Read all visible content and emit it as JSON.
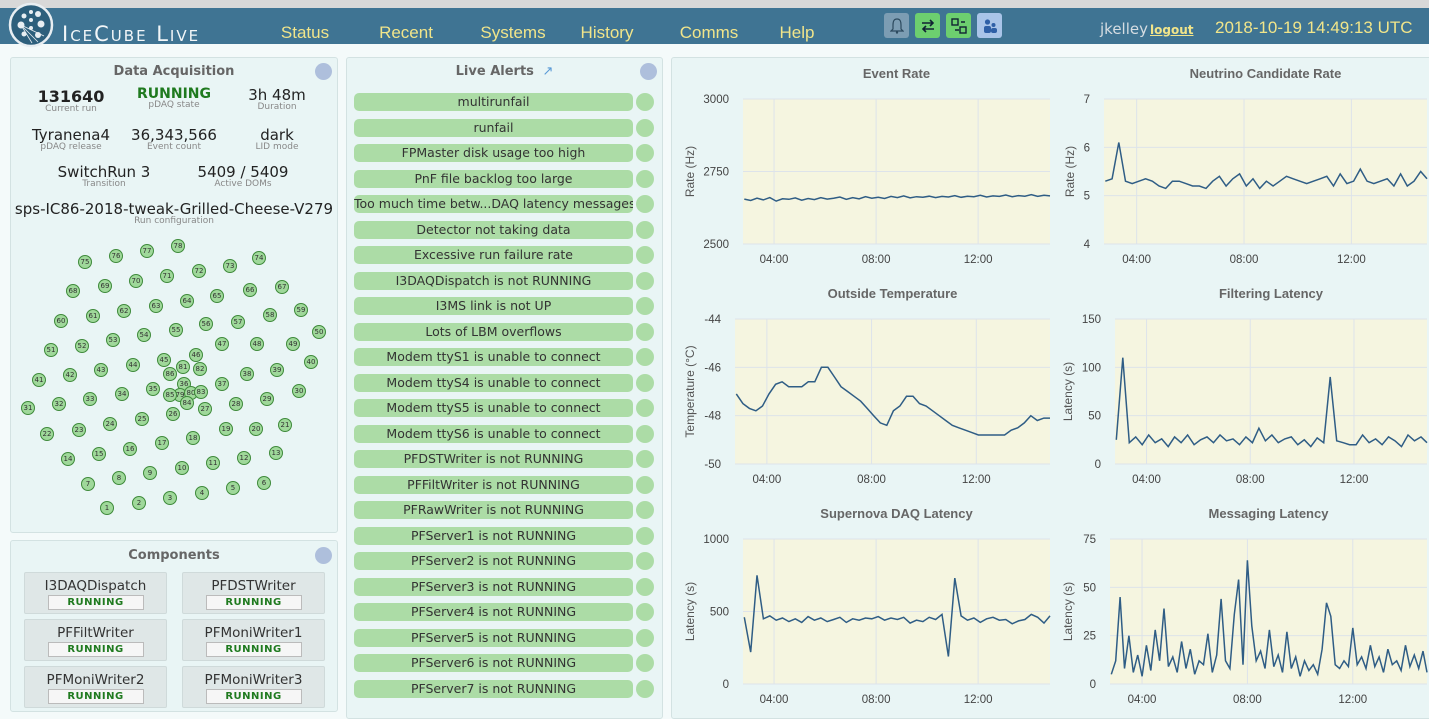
{
  "header": {
    "brand": "IceCube Live",
    "nav": [
      "Status",
      "Recent",
      "Systems",
      "History",
      "Comms",
      "Help"
    ],
    "icons": [
      {
        "name": "bell-icon",
        "glyph": "🔔",
        "color": "#7c9db3"
      },
      {
        "name": "transfer-arrows-icon",
        "glyph": "⇄",
        "color": "#6dcf6f"
      },
      {
        "name": "switch-icon",
        "glyph": "⇆",
        "color": "#6dcf6f"
      },
      {
        "name": "users-icon",
        "glyph": "👤",
        "color": "#a9c4e8"
      }
    ],
    "user": "jkelley",
    "logout": "logout",
    "datetime": "2018-10-19 14:49:13 UTC"
  },
  "data_acquisition": {
    "title": "Data Acquisition",
    "stats": [
      {
        "value": "131640",
        "label": "Current run"
      },
      {
        "value": "RUNNING",
        "label": "pDAQ state"
      },
      {
        "value": "3h 48m",
        "label": "Duration"
      },
      {
        "value": "Tyranena4",
        "label": "pDAQ release"
      },
      {
        "value": "36,343,566",
        "label": "Event count"
      },
      {
        "value": "dark",
        "label": "LID mode"
      },
      {
        "value": "SwitchRun 3",
        "label": "Transition"
      },
      {
        "value": "5409 / 5409",
        "label": "Active DOMs"
      },
      {
        "value": "sps-IC86-2018-tweak-Grilled-Cheese-V279",
        "label": "Run configuration"
      }
    ],
    "running_color": "#1f7a1f",
    "strings": [
      "1",
      "2",
      "3",
      "4",
      "5",
      "6",
      "7",
      "8",
      "9",
      "10",
      "11",
      "12",
      "13",
      "14",
      "15",
      "16",
      "17",
      "18",
      "19",
      "20",
      "21",
      "22",
      "23",
      "24",
      "25",
      "26",
      "27",
      "28",
      "29",
      "30",
      "31",
      "32",
      "33",
      "34",
      "35",
      "36",
      "37",
      "38",
      "39",
      "40",
      "41",
      "42",
      "43",
      "44",
      "45",
      "46",
      "47",
      "48",
      "49",
      "50",
      "51",
      "52",
      "53",
      "54",
      "55",
      "56",
      "57",
      "58",
      "59",
      "60",
      "61",
      "62",
      "63",
      "64",
      "65",
      "66",
      "67",
      "68",
      "69",
      "70",
      "71",
      "72",
      "73",
      "74",
      "75",
      "76",
      "77",
      "78",
      "79",
      "80",
      "81",
      "82",
      "83",
      "84",
      "85",
      "86"
    ]
  },
  "components": {
    "title": "Components",
    "items": [
      {
        "name": "I3DAQDispatch",
        "status": "RUNNING"
      },
      {
        "name": "PFDSTWriter",
        "status": "RUNNING"
      },
      {
        "name": "PFFiltWriter",
        "status": "RUNNING"
      },
      {
        "name": "PFMoniWriter1",
        "status": "RUNNING"
      },
      {
        "name": "PFMoniWriter2",
        "status": "RUNNING"
      },
      {
        "name": "PFMoniWriter3",
        "status": "RUNNING"
      }
    ]
  },
  "alerts": {
    "title": "Live Alerts",
    "items": [
      "multirunfail",
      "runfail",
      "FPMaster disk usage too high",
      "PnF file backlog too large",
      "Too much time betw...DAQ latency messages",
      "Detector not taking data",
      "Excessive run failure rate",
      "I3DAQDispatch is not RUNNING",
      "I3MS link is not UP",
      "Lots of LBM overflows",
      "Modem ttyS1 is unable to connect",
      "Modem ttyS4 is unable to connect",
      "Modem ttyS5 is unable to connect",
      "Modem ttyS6 is unable to connect",
      "PFDSTWriter is not RUNNING",
      "PFFiltWriter is not RUNNING",
      "PFRawWriter is not RUNNING",
      "PFServer1 is not RUNNING",
      "PFServer2 is not RUNNING",
      "PFServer3 is not RUNNING",
      "PFServer4 is not RUNNING",
      "PFServer5 is not RUNNING",
      "PFServer6 is not RUNNING",
      "PFServer7 is not RUNNING"
    ],
    "ok_color": "#acdca6"
  },
  "chart_data": [
    {
      "type": "line",
      "title": "Event Rate",
      "ylabel": "Rate (Hz)",
      "ylim": [
        2500,
        3000
      ],
      "yticks": [
        "2500",
        "2750",
        "3000"
      ],
      "xticks": [
        "04:00",
        "08:00",
        "12:00"
      ],
      "x_start": "02:50",
      "x_step_minutes": 15,
      "grid": true,
      "line_color": "#2f5d85",
      "values": [
        2655,
        2650,
        2658,
        2652,
        2660,
        2648,
        2656,
        2654,
        2659,
        2651,
        2657,
        2653,
        2660,
        2655,
        2658,
        2662,
        2654,
        2660,
        2656,
        2663,
        2658,
        2661,
        2657,
        2664,
        2660,
        2666,
        2659,
        2663,
        2661,
        2665,
        2660,
        2664,
        2662,
        2667,
        2661,
        2665,
        2663,
        2668,
        2662,
        2666,
        2664,
        2669,
        2663,
        2667,
        2665,
        2670,
        2664,
        2668,
        2666
      ]
    },
    {
      "type": "line",
      "title": "Neutrino Candidate Rate",
      "ylabel": "Rate (Hz)",
      "ylim": [
        4,
        7
      ],
      "yticks": [
        "4",
        "5",
        "6",
        "7"
      ],
      "xticks": [
        "04:00",
        "08:00",
        "12:00"
      ],
      "x_start": "02:50",
      "x_step_minutes": 15,
      "grid": true,
      "line_color": "#2f5d85",
      "values": [
        5.3,
        5.35,
        6.1,
        5.3,
        5.25,
        5.3,
        5.35,
        5.3,
        5.2,
        5.15,
        5.3,
        5.3,
        5.25,
        5.2,
        5.2,
        5.15,
        5.3,
        5.4,
        5.2,
        5.35,
        5.45,
        5.2,
        5.35,
        5.15,
        5.3,
        5.2,
        5.3,
        5.4,
        5.35,
        5.3,
        5.25,
        5.3,
        5.35,
        5.4,
        5.2,
        5.45,
        5.25,
        5.3,
        5.55,
        5.3,
        5.25,
        5.3,
        5.35,
        5.2,
        5.45,
        5.2,
        5.3,
        5.5,
        5.35
      ]
    },
    {
      "type": "line",
      "title": "Outside Temperature",
      "ylabel": "Temperature (°C)",
      "ylim": [
        -50,
        -44
      ],
      "yticks": [
        "-50",
        "-48",
        "-46",
        "-44"
      ],
      "xticks": [
        "04:00",
        "08:00",
        "12:00"
      ],
      "x_start": "02:50",
      "x_step_minutes": 15,
      "grid": true,
      "line_color": "#2f5d85",
      "values": [
        -47.1,
        -47.5,
        -47.7,
        -47.8,
        -47.6,
        -47.1,
        -46.7,
        -46.6,
        -46.8,
        -46.8,
        -46.8,
        -46.6,
        -46.6,
        -46.0,
        -46.0,
        -46.4,
        -46.8,
        -47.0,
        -47.2,
        -47.4,
        -47.7,
        -48.0,
        -48.3,
        -48.4,
        -47.8,
        -47.6,
        -47.2,
        -47.2,
        -47.5,
        -47.6,
        -47.8,
        -48.0,
        -48.2,
        -48.4,
        -48.5,
        -48.6,
        -48.7,
        -48.8,
        -48.8,
        -48.8,
        -48.8,
        -48.8,
        -48.6,
        -48.5,
        -48.3,
        -48.0,
        -48.2,
        -48.1,
        -48.1
      ]
    },
    {
      "type": "line",
      "title": "Filtering Latency",
      "ylabel": "Latency (s)",
      "ylim": [
        0,
        150
      ],
      "yticks": [
        "0",
        "50",
        "100",
        "150"
      ],
      "xticks": [
        "04:00",
        "08:00",
        "12:00"
      ],
      "x_start": "02:50",
      "x_step_minutes": 15,
      "grid": true,
      "line_color": "#2f5d85",
      "values": [
        25,
        110,
        22,
        28,
        20,
        30,
        22,
        26,
        18,
        28,
        22,
        30,
        20,
        25,
        28,
        22,
        30,
        24,
        26,
        20,
        28,
        22,
        37,
        24,
        30,
        22,
        26,
        28,
        20,
        25,
        18,
        27,
        22,
        90,
        24,
        22,
        20,
        20,
        30,
        22,
        26,
        20,
        28,
        24,
        18,
        30,
        24,
        28,
        22
      ]
    },
    {
      "type": "line",
      "title": "Supernova DAQ Latency",
      "ylabel": "Latency (s)",
      "ylim": [
        0,
        1000
      ],
      "yticks": [
        "0",
        "500",
        "1000"
      ],
      "xticks": [
        "04:00",
        "08:00",
        "12:00"
      ],
      "x_start": "02:50",
      "x_step_minutes": 15,
      "grid": true,
      "line_color": "#2f5d85",
      "values": [
        460,
        220,
        750,
        450,
        470,
        440,
        455,
        430,
        450,
        425,
        465,
        440,
        455,
        430,
        445,
        460,
        425,
        450,
        440,
        455,
        450,
        465,
        440,
        455,
        445,
        460,
        420,
        440,
        430,
        460,
        445,
        480,
        190,
        730,
        470,
        440,
        455,
        425,
        450,
        460,
        440,
        445,
        415,
        435,
        445,
        480,
        460,
        420,
        470
      ]
    },
    {
      "type": "line",
      "title": "Messaging Latency",
      "ylabel": "Latency (s)",
      "ylim": [
        0,
        75
      ],
      "yticks": [
        "0",
        "25",
        "50",
        "75"
      ],
      "xticks": [
        "04:00",
        "08:00",
        "12:00"
      ],
      "x_start": "02:50",
      "x_step_minutes": 10,
      "grid": true,
      "line_color": "#2f5d85",
      "values": [
        5,
        12,
        45,
        8,
        25,
        6,
        15,
        4,
        20,
        7,
        28,
        12,
        39,
        9,
        14,
        6,
        22,
        8,
        18,
        5,
        12,
        10,
        26,
        6,
        15,
        44,
        12,
        8,
        36,
        54,
        10,
        64,
        30,
        12,
        17,
        8,
        28,
        9,
        15,
        6,
        27,
        8,
        14,
        4,
        12,
        7,
        10,
        5,
        18,
        42,
        35,
        10,
        8,
        12,
        9,
        29,
        10,
        14,
        8,
        20,
        9,
        14,
        6,
        18,
        10,
        12,
        7,
        20,
        9,
        15,
        8,
        17,
        6
      ]
    }
  ]
}
